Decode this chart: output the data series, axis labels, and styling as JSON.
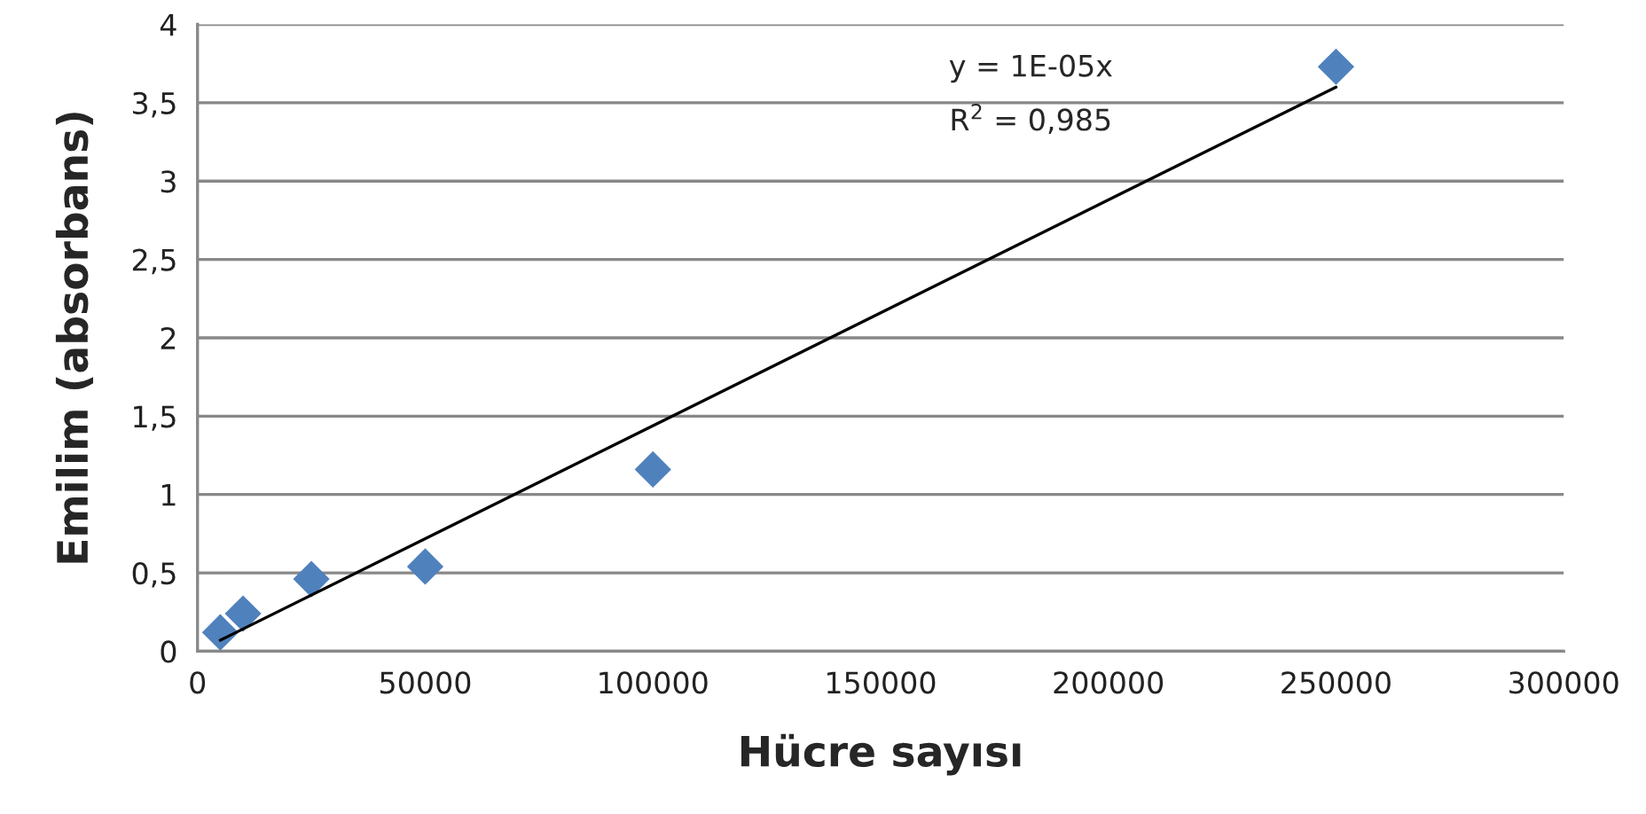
{
  "chart_data": {
    "type": "scatter",
    "xlabel": "Hücre sayısı",
    "ylabel": "Emilim (absorbans)",
    "annotations": [
      "y = 1E-05x",
      "R$^{2}$ = 0,985"
    ],
    "series": [
      {
        "color": "#4f81bd",
        "marker": "diamond",
        "x": [
          5000,
          10000,
          25000,
          50000,
          100000,
          250000
        ],
        "values": [
          0.12,
          0.24,
          0.46,
          0.54,
          1.16,
          3.73
        ]
      },
      {
        "type": "line",
        "color": "#000000",
        "line_style": "solid",
        "marker": "none",
        "x": [
          5000,
          250000
        ],
        "values": [
          0.07,
          3.6
        ]
      }
    ],
    "xlim": [
      0,
      300000
    ],
    "xticks": [
      0,
      50000,
      100000,
      150000,
      200000,
      250000,
      300000
    ],
    "ylim": [
      0,
      4
    ],
    "yticks": [
      0,
      {
        "value": 0.5,
        "label": "0,5"
      },
      1,
      {
        "value": 1.5,
        "label": "1,5"
      },
      2,
      {
        "value": 2.5,
        "label": "2,5"
      },
      3,
      {
        "value": 3.5,
        "label": "3,5"
      },
      4
    ],
    "grid": "y",
    "legend": false
  }
}
